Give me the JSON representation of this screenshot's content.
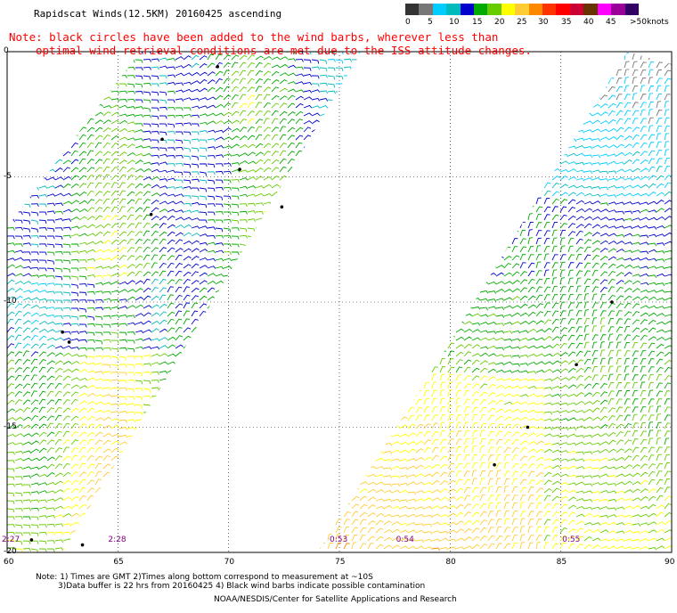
{
  "title": "Rapidscat Winds(12.5KM) 20160425 ascending",
  "note_line1": "Note: black circles have been added to the wind barbs, wherever less than",
  "note_line2": "optimal wind retrieval conditions are met due to the ISS attitude changes.",
  "colorbar": {
    "colors": [
      "#333333",
      "#777777",
      "#00ccff",
      "#00bbbb",
      "#0000cc",
      "#00aa00",
      "#66cc00",
      "#ffff00",
      "#ffcc33",
      "#ff8800",
      "#ff3300",
      "#ff0000",
      "#cc0033",
      "#663300",
      "#ff00ff",
      "#990099",
      "#330066"
    ],
    "labels": [
      "0",
      "5",
      "10",
      "15",
      "20",
      "25",
      "30",
      "35",
      "40",
      "45",
      ">50"
    ],
    "units": "knots"
  },
  "axes": {
    "y_labels": [
      "0",
      "-5",
      "-10",
      "-15",
      "-20"
    ],
    "x_labels": [
      "60",
      "65",
      "70",
      "75",
      "80",
      "85",
      "90"
    ],
    "lon_range": [
      60,
      90
    ],
    "lat_range": [
      -20,
      0
    ]
  },
  "pass_times": [
    "2:27",
    "2:28",
    "0:53",
    "0:54",
    "0:55"
  ],
  "swaths": [
    {
      "id": "west",
      "corners_lonlat": [
        [
          60,
          -20
        ],
        [
          62.5,
          -20
        ],
        [
          76,
          0
        ],
        [
          66,
          0
        ],
        [
          60,
          -7
        ]
      ]
    },
    {
      "id": "east",
      "corners_lonlat": [
        [
          74,
          -20
        ],
        [
          90,
          -20
        ],
        [
          90,
          -0.5
        ],
        [
          88,
          0
        ],
        [
          79,
          -13
        ]
      ]
    }
  ],
  "footer": {
    "line1": "Note: 1) Times are GMT 2)Times along bottom correspond to measurement at ~10S",
    "line2": "3)Data buffer is 22 hrs from 20160425 4) Black wind barbs indicate possible contamination",
    "credit": "NOAA/NESDIS/Center for Satellite Applications and Research"
  }
}
